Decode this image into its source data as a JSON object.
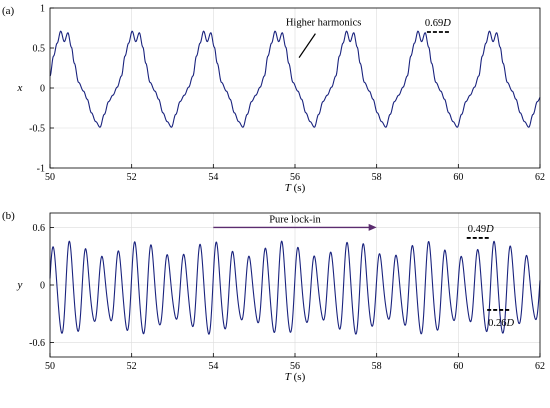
{
  "chart_data": [
    {
      "panel_label": "(a)",
      "type": "line",
      "xlabel_var": "T",
      "xlabel_unit": " (s)",
      "ylabel": "x",
      "xlim": [
        50,
        62
      ],
      "ylim": [
        -1,
        1
      ],
      "xticks": [
        50,
        52,
        54,
        56,
        58,
        60,
        62
      ],
      "yticks": [
        -1,
        -0.5,
        0,
        0.5,
        1
      ],
      "ytick_labels": [
        "-1",
        "-0.5",
        "0",
        "0.5",
        "1"
      ],
      "grid": true,
      "series_color": "#1a237e",
      "signal": {
        "period_s": 1.75,
        "start_s": 50.0,
        "peak_amplitude": 0.69
      },
      "annotations": {
        "higher_harmonics": {
          "text": "Higher harmonics",
          "x": 56.7,
          "y": 0.78,
          "arrow_to": [
            56.1,
            0.38
          ]
        },
        "peak": {
          "text_value": "0.69",
          "text_unit": "D",
          "x": 59.5,
          "y": 0.7
        }
      }
    },
    {
      "panel_label": "(b)",
      "type": "line",
      "xlabel_var": "T",
      "xlabel_unit": " (s)",
      "ylabel": "y",
      "xlim": [
        50,
        62
      ],
      "ylim": [
        -0.75,
        0.75
      ],
      "xticks": [
        50,
        52,
        54,
        56,
        58,
        60,
        62
      ],
      "yticks": [
        -0.6,
        0,
        0.6
      ],
      "ytick_labels": [
        "-0.6",
        "0",
        "0.6"
      ],
      "grid": true,
      "series_color": "#1a237e",
      "signal": {
        "period_s": 0.4,
        "mean": -0.05
      },
      "annotations": {
        "lock_in": {
          "text": "Pure lock-in",
          "x_start": 54,
          "x_end": 58,
          "y": 0.6,
          "color": "#5b2c6f"
        },
        "max": {
          "text_value": "0.49",
          "text_unit": "D",
          "x": 60.5,
          "y": 0.49
        },
        "min": {
          "text_value": "0.26",
          "text_unit": "D",
          "x": 61.0,
          "y": -0.26
        }
      }
    }
  ]
}
